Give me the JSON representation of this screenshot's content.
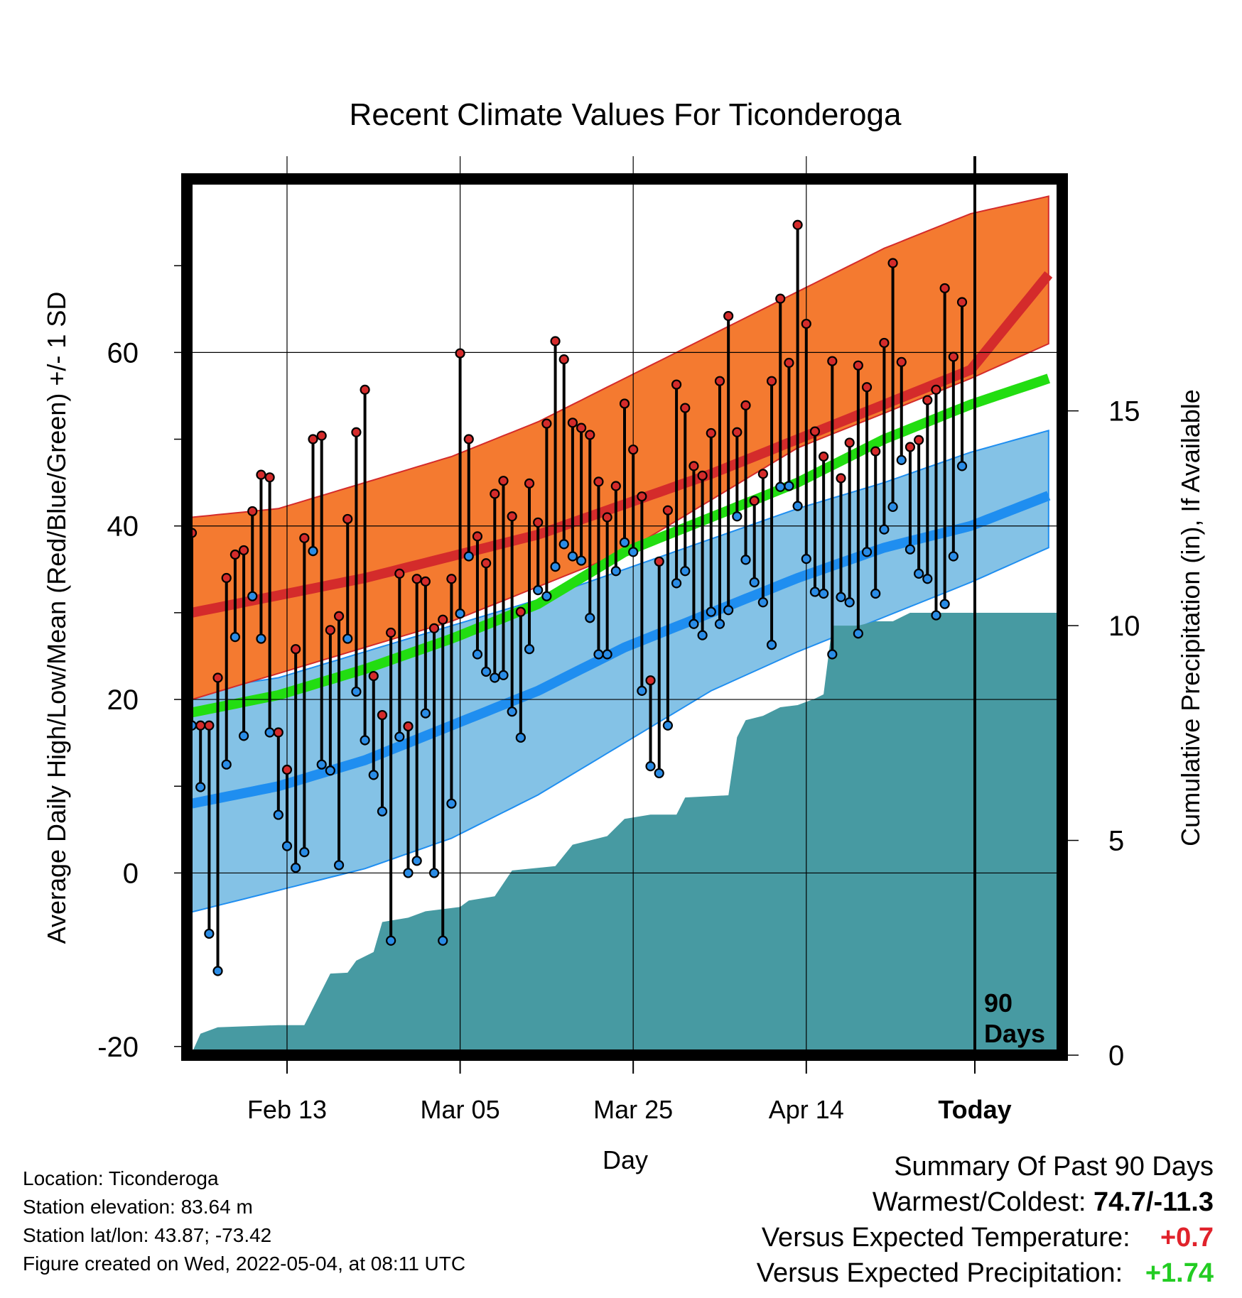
{
  "chart_data": {
    "type": "line",
    "title": "Recent Climate Values For Ticonderoga",
    "xlabel": "Day",
    "ylabel": "Average Daily High/Low/Mean (Red/Blue/Green) +/- 1 SD",
    "y2label": "Cumulative Precipitation (in), If Available",
    "ylim": [
      -21,
      80
    ],
    "y2lim": [
      0,
      20.4
    ],
    "yticks": [
      "60",
      "40",
      "20",
      "0",
      "-20"
    ],
    "y2ticks": [
      "15",
      "10",
      "5",
      "0"
    ],
    "xticks": [
      "Feb 13",
      "Mar 05",
      "Mar 25",
      "Apr 14",
      "Today"
    ],
    "x_start": "Feb 02",
    "today_marker_label": [
      "90",
      "Days"
    ],
    "grid": true,
    "normals": {
      "high_mean": [
        [
          0,
          30
        ],
        [
          20,
          34
        ],
        [
          40,
          39
        ],
        [
          60,
          46
        ],
        [
          80,
          54
        ],
        [
          90,
          58
        ],
        [
          99,
          69
        ]
      ],
      "high_upper": [
        [
          0,
          41
        ],
        [
          10,
          42
        ],
        [
          20,
          45
        ],
        [
          30,
          48
        ],
        [
          40,
          52
        ],
        [
          50,
          57
        ],
        [
          60,
          62
        ],
        [
          70,
          67
        ],
        [
          80,
          72
        ],
        [
          90,
          76
        ],
        [
          99,
          78
        ]
      ],
      "high_lower": [
        [
          0,
          20
        ],
        [
          10,
          23
        ],
        [
          20,
          26
        ],
        [
          30,
          29
        ],
        [
          40,
          33
        ],
        [
          50,
          37
        ],
        [
          60,
          43
        ],
        [
          70,
          49
        ],
        [
          80,
          53
        ],
        [
          90,
          57
        ],
        [
          99,
          61
        ]
      ],
      "avg_mean": [
        [
          0,
          18.5
        ],
        [
          10,
          20.5
        ],
        [
          20,
          23.5
        ],
        [
          30,
          27
        ],
        [
          40,
          31
        ],
        [
          50,
          37
        ],
        [
          60,
          41
        ],
        [
          70,
          45
        ],
        [
          80,
          50
        ],
        [
          90,
          54
        ],
        [
          99,
          57
        ]
      ],
      "low_mean": [
        [
          0,
          8
        ],
        [
          10,
          10
        ],
        [
          20,
          13
        ],
        [
          30,
          17
        ],
        [
          40,
          21
        ],
        [
          50,
          26
        ],
        [
          60,
          30
        ],
        [
          70,
          34
        ],
        [
          80,
          37.5
        ],
        [
          90,
          40
        ],
        [
          99,
          43.5
        ]
      ],
      "low_upper": [
        [
          0,
          21
        ],
        [
          10,
          22.5
        ],
        [
          20,
          25.5
        ],
        [
          30,
          28.5
        ],
        [
          40,
          31.5
        ],
        [
          50,
          35
        ],
        [
          60,
          38.5
        ],
        [
          70,
          42
        ],
        [
          80,
          45
        ],
        [
          90,
          48.5
        ],
        [
          99,
          51
        ]
      ],
      "low_lower": [
        [
          0,
          -4.5
        ],
        [
          10,
          -2
        ],
        [
          20,
          0.5
        ],
        [
          30,
          4
        ],
        [
          40,
          9
        ],
        [
          50,
          15
        ],
        [
          60,
          21
        ],
        [
          70,
          25.5
        ],
        [
          80,
          29.5
        ],
        [
          90,
          33.5
        ],
        [
          99,
          37.5
        ]
      ]
    },
    "observed_high": [
      39.2,
      17,
      17,
      22.5,
      34,
      36.7,
      37.2,
      41.7,
      45.9,
      45.6,
      16.2,
      11.9,
      25.8,
      38.6,
      50,
      50.4,
      28,
      29.6,
      40.8,
      50.8,
      55.7,
      22.7,
      18.2,
      27.7,
      34.5,
      16.9,
      33.9,
      33.6,
      28.2,
      29.2,
      33.9,
      59.9,
      50,
      38.8,
      35.7,
      43.7,
      45.2,
      41.1,
      30.1,
      44.9,
      40.4,
      51.8,
      61.3,
      59.2,
      51.9,
      51.3,
      50.5,
      45.1,
      41,
      44.6,
      54.1,
      48.8,
      43.4,
      22.2,
      35.9,
      41.8,
      56.3,
      53.6,
      46.9,
      45.8,
      50.7,
      56.7,
      64.2,
      50.8,
      53.9,
      42.9,
      46,
      56.7,
      66.2,
      58.8,
      74.7,
      63.3,
      50.9,
      48,
      59,
      45.5,
      49.6,
      58.5,
      56,
      48.6,
      61.1,
      70.3,
      58.9,
      49.1,
      49.9,
      54.5,
      55.7,
      67.4,
      59.5,
      65.8
    ],
    "observed_low": [
      17,
      9.9,
      -7,
      -11.3,
      12.5,
      27.2,
      15.8,
      31.9,
      27,
      16.2,
      6.7,
      3.1,
      0.6,
      2.4,
      37.1,
      12.5,
      11.8,
      0.9,
      27,
      20.9,
      15.3,
      11.3,
      7.1,
      -7.8,
      15.7,
      0,
      1.4,
      18.4,
      0,
      -7.8,
      8,
      29.9,
      36.5,
      25.2,
      23.2,
      22.5,
      22.8,
      18.6,
      15.6,
      25.8,
      32.6,
      31.9,
      35.3,
      37.9,
      36.5,
      36,
      29.4,
      25.2,
      25.2,
      34.8,
      38.1,
      37,
      21,
      12.3,
      11.5,
      17,
      33.4,
      34.8,
      28.7,
      27.4,
      30.1,
      28.7,
      30.3,
      41.1,
      36.1,
      33.5,
      31.2,
      26.3,
      44.5,
      44.6,
      42.3,
      36.2,
      32.4,
      32.2,
      25.2,
      31.8,
      31.2,
      27.6,
      37,
      32.2,
      39.6,
      42.2,
      47.6,
      37.3,
      34.5,
      33.9,
      29.7,
      31,
      36.5,
      46.9
    ],
    "cumulative_precipitation": [
      [
        0,
        0.05
      ],
      [
        1,
        0.5
      ],
      [
        3,
        0.65
      ],
      [
        10,
        0.7
      ],
      [
        13,
        0.7
      ],
      [
        14,
        1.1
      ],
      [
        16,
        1.9
      ],
      [
        18,
        1.92
      ],
      [
        19,
        2.2
      ],
      [
        21,
        2.4
      ],
      [
        22,
        3.1
      ],
      [
        25,
        3.2
      ],
      [
        27,
        3.35
      ],
      [
        31,
        3.45
      ],
      [
        32,
        3.6
      ],
      [
        35,
        3.7
      ],
      [
        37,
        4.3
      ],
      [
        42,
        4.4
      ],
      [
        44,
        4.9
      ],
      [
        48,
        5.1
      ],
      [
        50,
        5.5
      ],
      [
        53,
        5.6
      ],
      [
        56,
        5.6
      ],
      [
        57,
        6.0
      ],
      [
        62,
        6.05
      ],
      [
        63,
        7.4
      ],
      [
        64,
        7.8
      ],
      [
        66,
        7.9
      ],
      [
        68,
        8.1
      ],
      [
        70,
        8.15
      ],
      [
        72,
        8.3
      ],
      [
        73,
        8.4
      ],
      [
        74,
        10.0
      ],
      [
        77,
        10.0
      ],
      [
        79,
        10.1
      ],
      [
        81,
        10.1
      ],
      [
        83,
        10.3
      ],
      [
        99,
        10.3
      ]
    ]
  },
  "info": {
    "location": "Location: Ticonderoga",
    "elevation": "Station elevation: 83.64 m",
    "latlon": "Station lat/lon: 43.87; -73.42",
    "created": "Figure created on Wed, 2022-05-04, at 08:11 UTC"
  },
  "summary": {
    "heading": "Summary Of Past 90 Days",
    "warm_cold_label": "Warmest/Coldest:",
    "warm_cold_value": "74.7/-11.3",
    "temp_label": "Versus Expected Temperature:",
    "temp_value": "+0.7",
    "precip_label": "Versus Expected Precipitation:",
    "precip_value": "+1.74"
  },
  "colors": {
    "high_band": "#f47a30",
    "high_line": "#d42b2b",
    "low_band": "#84c2e6",
    "low_line": "#1f8ef0",
    "mean_line": "#22dd11",
    "precip": "#479aa2",
    "high_dot": "#d42b2b",
    "low_dot": "#2a8ce6"
  }
}
